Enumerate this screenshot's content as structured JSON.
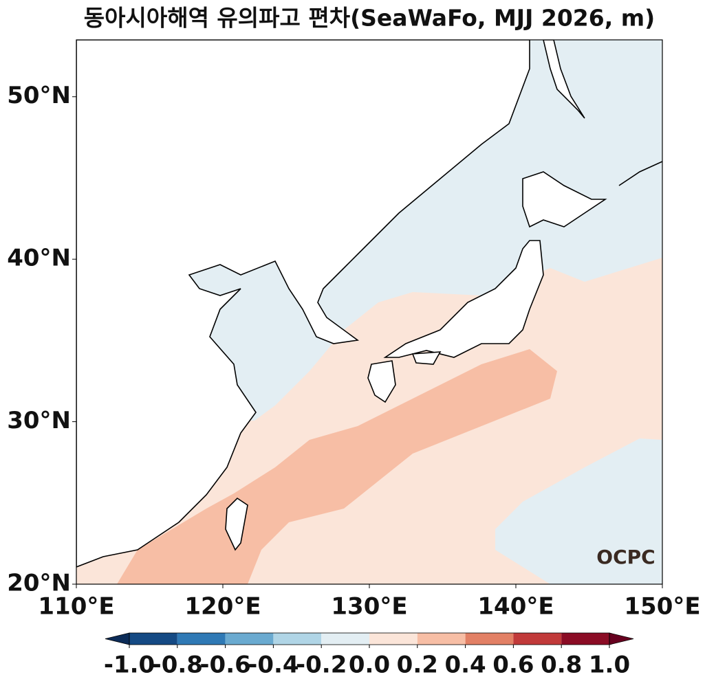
{
  "title": "동아시아해역 유의파고 편차(SeaWaFo, MJJ 2026, m)",
  "map": {
    "xlim": [
      110,
      150
    ],
    "ylim": [
      20,
      53.5
    ],
    "xticks": [
      {
        "value": 110,
        "label": "110°E"
      },
      {
        "value": 120,
        "label": "120°E"
      },
      {
        "value": 130,
        "label": "130°E"
      },
      {
        "value": 140,
        "label": "140°E"
      },
      {
        "value": 150,
        "label": "150°E"
      }
    ],
    "yticks": [
      {
        "value": 20,
        "label": "20°N"
      },
      {
        "value": 30,
        "label": "30°N"
      },
      {
        "value": 40,
        "label": "40°N"
      },
      {
        "value": 50,
        "label": "50°N"
      }
    ]
  },
  "colorbar": {
    "ticks": [
      {
        "value": -1,
        "label": "-1.0"
      },
      -0.8,
      -0.6,
      -0.4,
      -0.2,
      {
        "value": 0,
        "label": "0.0"
      },
      0.2,
      0.4,
      0.6,
      0.8,
      {
        "value": 1,
        "label": "1.0"
      }
    ],
    "colors": [
      "#154a84",
      "#2f79b5",
      "#6aaad0",
      "#b0d5e6",
      "#e3eef3",
      "#fbe5d9",
      "#f7bea5",
      "#e28065",
      "#c13a3a",
      "#8b0c25"
    ],
    "under_color": "#0c2c58",
    "over_color": "#67001f"
  },
  "logo": "OCPC"
}
